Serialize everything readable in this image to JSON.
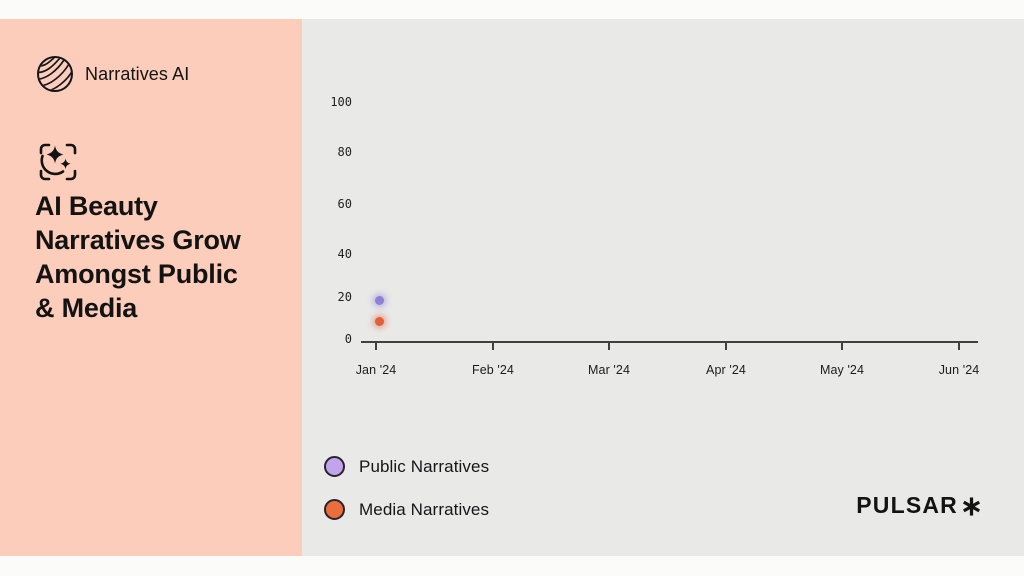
{
  "brand": {
    "name": "Narratives AI"
  },
  "headline": {
    "title": "AI Beauty\nNarratives Grow\nAmongst Public\n& Media"
  },
  "footer": {
    "brand": "PULSAR"
  },
  "colors": {
    "page_bg": "#fbfbfa",
    "left_panel_bg": "#fccdba",
    "right_panel_bg": "#e9e9e7",
    "text": "#131313",
    "axis": "#404040",
    "public_purple": "#8f80d8",
    "media_orange": "#e1603a"
  },
  "legend": {
    "items": [
      {
        "id": "public",
        "label": "Public Narratives",
        "color": "#c2a4ec"
      },
      {
        "id": "media",
        "label": "Media Narratives",
        "color": "#e96e3c"
      }
    ]
  },
  "chart_data": {
    "type": "scatter",
    "title": "",
    "xlabel": "",
    "ylabel": "",
    "x_labels": [
      "Jan '24",
      "Feb '24",
      "Mar '24",
      "Apr '24",
      "May '24",
      "Jun '24"
    ],
    "y_ticks": [
      0,
      20,
      40,
      60,
      80,
      100
    ],
    "ylim": [
      0,
      100
    ],
    "grid": false,
    "legend_position": "bottom-left",
    "series": [
      {
        "id": "public-narratives",
        "name": "Public Narratives",
        "color": "#8f80d8",
        "halo": "rgba(143,128,216,0.45)",
        "points": [
          {
            "x": "Jan '24",
            "y": 17
          }
        ]
      },
      {
        "id": "media-narratives",
        "name": "Media Narratives",
        "color": "#e1603a",
        "halo": "rgba(225,96,56,0.45)",
        "points": [
          {
            "x": "Jan '24",
            "y": 8
          }
        ]
      }
    ]
  }
}
